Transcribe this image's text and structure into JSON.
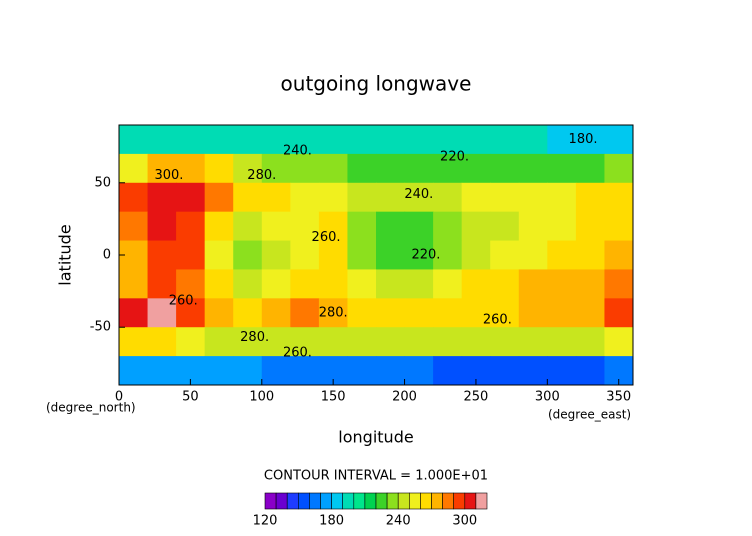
{
  "chart_data": {
    "type": "contour",
    "title": "outgoing longwave",
    "x_label": "longitude",
    "y_label": "latitude",
    "x_unit": "(degree_east)",
    "y_unit": "(degree_north)",
    "contour_interval": "CONTOUR INTERVAL = 1.000E+01",
    "x": [
      10,
      30,
      50,
      70,
      90,
      110,
      130,
      150,
      170,
      190,
      210,
      230,
      250,
      270,
      290,
      310,
      330,
      350
    ],
    "y": [
      80,
      60,
      40,
      20,
      0,
      -20,
      -40,
      -60,
      -80
    ],
    "z": [
      [
        190,
        190,
        195,
        195,
        195,
        195,
        195,
        195,
        195,
        195,
        195,
        190,
        190,
        190,
        190,
        185,
        185,
        185
      ],
      [
        250,
        270,
        275,
        260,
        240,
        235,
        230,
        230,
        225,
        225,
        225,
        225,
        225,
        225,
        225,
        225,
        225,
        230
      ],
      [
        290,
        305,
        300,
        280,
        265,
        260,
        255,
        255,
        245,
        240,
        240,
        245,
        250,
        250,
        255,
        255,
        260,
        265
      ],
      [
        280,
        300,
        295,
        260,
        245,
        250,
        255,
        260,
        235,
        225,
        225,
        230,
        240,
        245,
        250,
        255,
        260,
        265
      ],
      [
        270,
        295,
        290,
        250,
        235,
        245,
        255,
        260,
        235,
        220,
        220,
        230,
        240,
        250,
        255,
        260,
        265,
        270
      ],
      [
        275,
        290,
        280,
        260,
        240,
        250,
        265,
        265,
        255,
        245,
        245,
        250,
        260,
        265,
        270,
        270,
        275,
        285
      ],
      [
        300,
        310,
        295,
        270,
        260,
        275,
        285,
        270,
        265,
        260,
        260,
        260,
        260,
        265,
        270,
        270,
        275,
        290
      ],
      [
        260,
        265,
        255,
        245,
        240,
        240,
        240,
        240,
        240,
        240,
        240,
        240,
        240,
        240,
        240,
        240,
        240,
        250
      ],
      [
        170,
        170,
        170,
        170,
        170,
        165,
        165,
        160,
        160,
        160,
        160,
        155,
        150,
        150,
        150,
        150,
        155,
        160
      ]
    ],
    "xlim": [
      0,
      360
    ],
    "ylim": [
      -90,
      90
    ],
    "xticks": [
      0,
      50,
      100,
      150,
      200,
      250,
      300,
      350
    ],
    "yticks": [
      -50,
      0,
      50
    ],
    "levels": [
      120,
      130,
      140,
      150,
      160,
      170,
      180,
      190,
      200,
      210,
      220,
      230,
      240,
      250,
      260,
      270,
      280,
      290,
      300,
      310,
      320
    ],
    "colors": [
      "#8a00c8",
      "#6a00d0",
      "#1e3cff",
      "#0050ff",
      "#0078ff",
      "#00a0ff",
      "#00c8f0",
      "#00dcb4",
      "#00e68c",
      "#00d250",
      "#3cd228",
      "#8ce01e",
      "#c8e61e",
      "#f0f01e",
      "#ffdc00",
      "#ffb400",
      "#ff7800",
      "#fa3c00",
      "#e61414",
      "#f0a0a0"
    ],
    "colorbar_ticks": [
      120,
      180,
      240,
      300
    ],
    "annotations": [
      {
        "label": "300.",
        "x": 35,
        "y": 55
      },
      {
        "label": "280.",
        "x": 100,
        "y": 55
      },
      {
        "label": "240.",
        "x": 125,
        "y": 72
      },
      {
        "label": "220.",
        "x": 235,
        "y": 68
      },
      {
        "label": "240.",
        "x": 210,
        "y": 42
      },
      {
        "label": "260.",
        "x": 145,
        "y": 12
      },
      {
        "label": "220.",
        "x": 215,
        "y": 0
      },
      {
        "label": "260.",
        "x": 45,
        "y": -32
      },
      {
        "label": "280.",
        "x": 150,
        "y": -40
      },
      {
        "label": "280.",
        "x": 95,
        "y": -57
      },
      {
        "label": "260.",
        "x": 265,
        "y": -45
      },
      {
        "label": "260.",
        "x": 125,
        "y": -68
      },
      {
        "label": "180.",
        "x": 325,
        "y": 80
      }
    ]
  }
}
